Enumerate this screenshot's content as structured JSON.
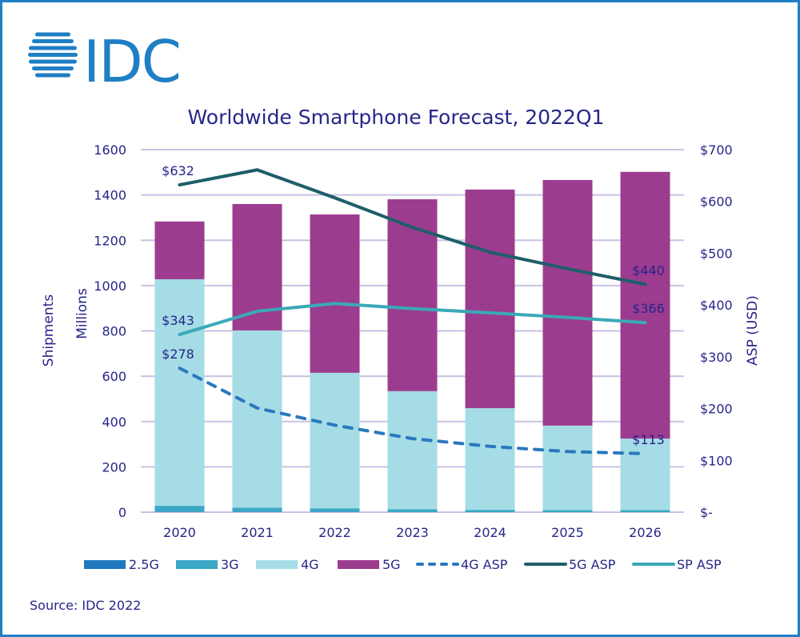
{
  "logo": {
    "text": "IDC",
    "color": "#1f7fc4"
  },
  "source": "Source: IDC 2022",
  "chart_data": {
    "type": "bar",
    "stacked": true,
    "title": "Worldwide Smartphone Forecast, 2022Q1",
    "ylabel": "Shipments\nMillions",
    "ylabel_lines": [
      "Shipments",
      "Millions"
    ],
    "y2label": "ASP (USD)",
    "ylim": [
      0,
      1600
    ],
    "y2lim": [
      0,
      700
    ],
    "yticks": [
      "0",
      "200",
      "400",
      "600",
      "800",
      "1000",
      "1200",
      "1400",
      "1600"
    ],
    "y2ticks": [
      "$-",
      "$100",
      "$200",
      "$300",
      "$400",
      "$500",
      "$600",
      "$700"
    ],
    "grid": true,
    "legend_placement": "bottom",
    "categories": [
      "2020",
      "2021",
      "2022",
      "2023",
      "2024",
      "2025",
      "2026"
    ],
    "series": [
      {
        "name": "2.5G",
        "kind": "bar",
        "color": "#1f78be",
        "values": [
          1,
          1,
          1,
          0,
          0,
          0,
          0
        ]
      },
      {
        "name": "3G",
        "kind": "bar",
        "color": "#3aa8c6",
        "values": [
          27,
          19,
          16,
          13,
          10,
          9,
          9
        ]
      },
      {
        "name": "4G",
        "kind": "bar",
        "color": "#a5dce6",
        "values": [
          1000,
          782,
          598,
          521,
          449,
          373,
          316
        ]
      },
      {
        "name": "5G",
        "kind": "bar",
        "color": "#9c3c8f",
        "values": [
          255,
          558,
          699,
          847,
          965,
          1084,
          1177
        ]
      },
      {
        "name": "4G ASP",
        "kind": "line",
        "axis": "right",
        "dashed": true,
        "color": "#2a78bf",
        "values": [
          278,
          201,
          168,
          142,
          127,
          117,
          113
        ]
      },
      {
        "name": "5G ASP",
        "kind": "line",
        "axis": "right",
        "color": "#1e5e69",
        "values": [
          632,
          661,
          607,
          550,
          502,
          470,
          440
        ]
      },
      {
        "name": "SP ASP",
        "kind": "line",
        "axis": "right",
        "color": "#3aa9b7",
        "values": [
          343,
          388,
          403,
          393,
          385,
          376,
          366
        ]
      }
    ],
    "annotations": [
      {
        "series": "5G ASP",
        "category": "2020",
        "text": "$632"
      },
      {
        "series": "5G ASP",
        "category": "2026",
        "text": "$440"
      },
      {
        "series": "SP ASP",
        "category": "2020",
        "text": "$343"
      },
      {
        "series": "SP ASP",
        "category": "2026",
        "text": "$366"
      },
      {
        "series": "4G ASP",
        "category": "2020",
        "text": "$278"
      },
      {
        "series": "4G ASP",
        "category": "2026",
        "text": "$113"
      }
    ]
  }
}
